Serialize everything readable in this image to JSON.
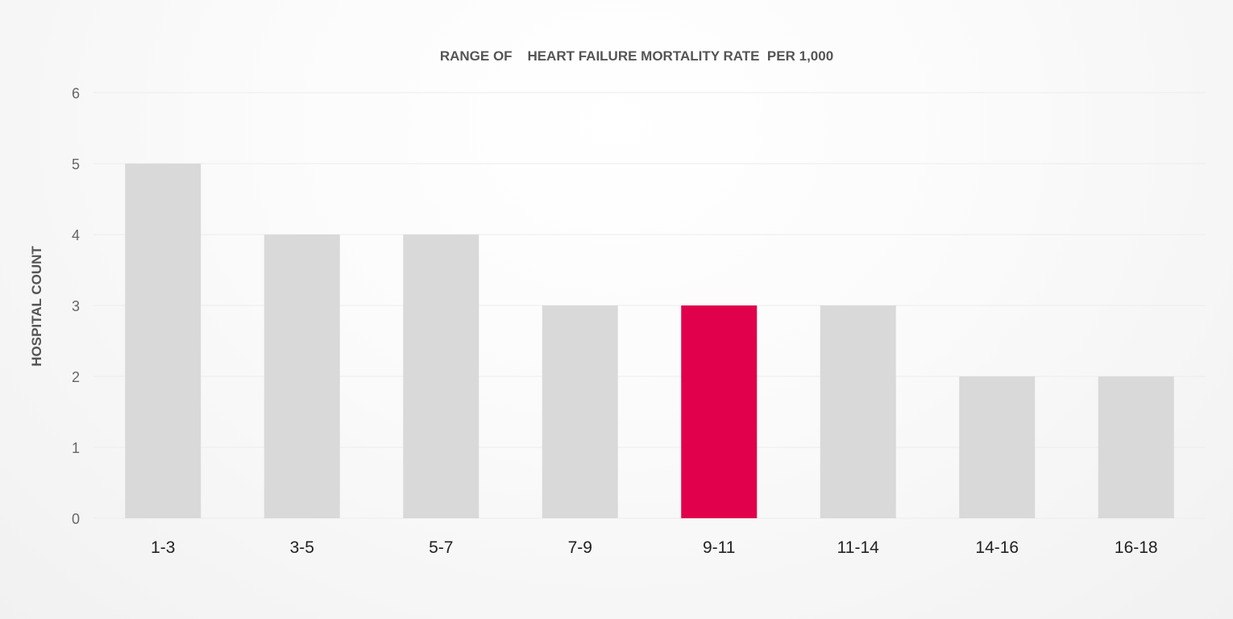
{
  "chart_data": {
    "type": "bar",
    "title": "RANGE OF    HEART FAILURE MORTALITY RATE  PER 1,000",
    "xlabel": "",
    "ylabel": "HOSPITAL COUNT",
    "categories": [
      "1-3",
      "3-5",
      "5-7",
      "7-9",
      "9-11",
      "11-14",
      "14-16",
      "16-18"
    ],
    "values": [
      5,
      4,
      4,
      3,
      3,
      3,
      2,
      2
    ],
    "highlight_category": "9-11",
    "ylim": [
      0,
      6
    ],
    "yticks": [
      0,
      1,
      2,
      3,
      4,
      5,
      6
    ],
    "grid": true,
    "legend": "none",
    "colors": {
      "bar": "#d9d9d9",
      "highlight": "#e0004b",
      "grid": "#ececec"
    }
  }
}
